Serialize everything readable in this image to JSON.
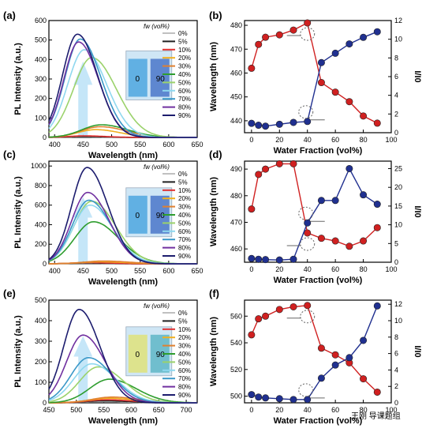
{
  "panels": {
    "a": {
      "label": "(a)"
    },
    "b": {
      "label": "(b)"
    },
    "c": {
      "label": "(c)"
    },
    "d": {
      "label": "(d)"
    },
    "e": {
      "label": "(e)"
    },
    "f": {
      "label": "(f)"
    }
  },
  "legend": {
    "title": "fw (vol%)",
    "entries": [
      "0%",
      "5%",
      "10%",
      "20%",
      "30%",
      "40%",
      "50%",
      "60%",
      "70%",
      "80%",
      "90%"
    ],
    "colors": [
      "#c0c0c0",
      "#202020",
      "#e03030",
      "#f0b020",
      "#e08030",
      "#2e9d2e",
      "#9bd26b",
      "#8fd8ef",
      "#3a98c8",
      "#7030a0",
      "#1c1c6e"
    ]
  },
  "cuvette": {
    "left": "0",
    "right": "90"
  },
  "watermark": "王刚 导课题组",
  "chart_data": [
    {
      "id": "a",
      "type": "line",
      "xlabel": "Wavelength (nm)",
      "ylabel": "PL Intensity (a.u.)",
      "xlim": [
        390,
        650
      ],
      "ylim": [
        0,
        600
      ],
      "xticks": [
        400,
        450,
        500,
        550,
        600,
        650
      ],
      "yticks": [
        0,
        100,
        200,
        300,
        400,
        500,
        600
      ],
      "series": [
        {
          "name": "0%",
          "peak": 445,
          "height": 3,
          "width": 28
        },
        {
          "name": "5%",
          "peak": 448,
          "height": 5,
          "width": 28
        },
        {
          "name": "10%",
          "peak": 452,
          "height": 8,
          "width": 28
        },
        {
          "name": "20%",
          "peak": 472,
          "height": 40,
          "width": 32
        },
        {
          "name": "30%",
          "peak": 480,
          "height": 55,
          "width": 34
        },
        {
          "name": "40%",
          "peak": 482,
          "height": 65,
          "width": 34
        },
        {
          "name": "50%",
          "peak": 465,
          "height": 410,
          "width": 32
        },
        {
          "name": "60%",
          "peak": 452,
          "height": 450,
          "width": 29
        },
        {
          "name": "70%",
          "peak": 445,
          "height": 505,
          "width": 27
        },
        {
          "name": "80%",
          "peak": 442,
          "height": 490,
          "width": 26
        },
        {
          "name": "90%",
          "peak": 440,
          "height": 530,
          "width": 26
        }
      ]
    },
    {
      "id": "b",
      "type": "scatter",
      "xlabel": "Water Fraction (vol%)",
      "ylabel": "Wavelength (nm)",
      "y2label": "I/I0",
      "xlim": [
        -5,
        100
      ],
      "ylim": [
        435,
        482
      ],
      "y2lim": [
        0,
        12
      ],
      "xticks": [
        0,
        20,
        40,
        60,
        80,
        100
      ],
      "yticks": [
        440,
        450,
        460,
        470,
        480
      ],
      "y2ticks": [
        0,
        2,
        4,
        6,
        8,
        10,
        12
      ],
      "series": [
        {
          "name": "Wavelength",
          "color": "#d02020",
          "axis": "left",
          "x": [
            0,
            5,
            10,
            20,
            30,
            40,
            50,
            60,
            70,
            80,
            90
          ],
          "y": [
            462,
            472,
            475,
            476,
            478,
            481,
            456,
            452,
            448,
            442,
            439
          ]
        },
        {
          "name": "I/I0",
          "color": "#203090",
          "axis": "right",
          "x": [
            0,
            5,
            10,
            20,
            30,
            40,
            50,
            60,
            70,
            80,
            90
          ],
          "y": [
            1.0,
            0.8,
            0.7,
            0.9,
            1.1,
            1.2,
            7.5,
            8.5,
            9.5,
            10.2,
            10.8
          ]
        }
      ]
    },
    {
      "id": "c",
      "type": "line",
      "xlabel": "Wavelength (nm)",
      "ylabel": "PL Intensity (a.u.)",
      "xlim": [
        390,
        650
      ],
      "ylim": [
        0,
        1050
      ],
      "xticks": [
        400,
        450,
        500,
        550,
        600,
        650
      ],
      "yticks": [
        0,
        200,
        400,
        600,
        800,
        1000
      ],
      "series": [
        {
          "name": "0%",
          "peak": 450,
          "height": 5,
          "width": 30
        },
        {
          "name": "5%",
          "peak": 455,
          "height": 8,
          "width": 30
        },
        {
          "name": "10%",
          "peak": 460,
          "height": 12,
          "width": 30
        },
        {
          "name": "20%",
          "peak": 480,
          "height": 20,
          "width": 34
        },
        {
          "name": "30%",
          "peak": 485,
          "height": 28,
          "width": 34
        },
        {
          "name": "40%",
          "peak": 468,
          "height": 430,
          "width": 33
        },
        {
          "name": "50%",
          "peak": 465,
          "height": 640,
          "width": 31
        },
        {
          "name": "60%",
          "peak": 462,
          "height": 600,
          "width": 30
        },
        {
          "name": "70%",
          "peak": 460,
          "height": 650,
          "width": 29
        },
        {
          "name": "80%",
          "peak": 458,
          "height": 730,
          "width": 28
        },
        {
          "name": "90%",
          "peak": 457,
          "height": 985,
          "width": 27
        }
      ]
    },
    {
      "id": "d",
      "type": "scatter",
      "xlabel": "Water Fraction (vol%)",
      "ylabel": "Wavelength (nm)",
      "y2label": "I/I0",
      "xlim": [
        -5,
        100
      ],
      "ylim": [
        455,
        493
      ],
      "y2lim": [
        0,
        27
      ],
      "xticks": [
        0,
        20,
        40,
        60,
        80,
        100
      ],
      "yticks": [
        460,
        470,
        480,
        490
      ],
      "y2ticks": [
        0,
        5,
        10,
        15,
        20,
        25
      ],
      "series": [
        {
          "name": "Wavelength",
          "color": "#d02020",
          "axis": "left",
          "x": [
            0,
            5,
            10,
            20,
            30,
            40,
            50,
            60,
            70,
            80,
            90
          ],
          "y": [
            475,
            488,
            490,
            492,
            492,
            466,
            464,
            463,
            461,
            463,
            468
          ]
        },
        {
          "name": "I/I0",
          "color": "#203090",
          "axis": "right",
          "x": [
            0,
            5,
            10,
            20,
            30,
            40,
            50,
            60,
            70,
            80,
            90
          ],
          "y": [
            1.0,
            0.8,
            0.7,
            0.6,
            0.8,
            10.5,
            16.5,
            16.5,
            25,
            18,
            15.5
          ]
        }
      ]
    },
    {
      "id": "e",
      "type": "line",
      "xlabel": "Wavelength (nm)",
      "ylabel": "PL Intensity (a.u.)",
      "xlim": [
        450,
        720
      ],
      "ylim": [
        0,
        500
      ],
      "xticks": [
        450,
        500,
        550,
        600,
        650,
        700
      ],
      "yticks": [
        0,
        100,
        200,
        300,
        400,
        500
      ],
      "series": [
        {
          "name": "0%",
          "peak": 545,
          "height": 6,
          "width": 32
        },
        {
          "name": "5%",
          "peak": 550,
          "height": 10,
          "width": 32
        },
        {
          "name": "10%",
          "peak": 555,
          "height": 15,
          "width": 34
        },
        {
          "name": "20%",
          "peak": 560,
          "height": 22,
          "width": 36
        },
        {
          "name": "30%",
          "peak": 565,
          "height": 28,
          "width": 36
        },
        {
          "name": "40%",
          "peak": 560,
          "height": 115,
          "width": 36
        },
        {
          "name": "50%",
          "peak": 540,
          "height": 175,
          "width": 34
        },
        {
          "name": "60%",
          "peak": 528,
          "height": 190,
          "width": 33
        },
        {
          "name": "70%",
          "peak": 522,
          "height": 220,
          "width": 32
        },
        {
          "name": "80%",
          "peak": 512,
          "height": 330,
          "width": 30
        },
        {
          "name": "90%",
          "peak": 505,
          "height": 455,
          "width": 28
        }
      ]
    },
    {
      "id": "f",
      "type": "scatter",
      "xlabel": "Water Fraction (vol%)",
      "ylabel": "Wavelength (nm)",
      "y2label": "I/I0",
      "xlim": [
        -5,
        100
      ],
      "ylim": [
        495,
        572
      ],
      "y2lim": [
        0,
        12.5
      ],
      "xticks": [
        0,
        20,
        40,
        60,
        80,
        100
      ],
      "yticks": [
        500,
        520,
        540,
        560
      ],
      "y2ticks": [
        0,
        2,
        4,
        6,
        8,
        10,
        12
      ],
      "series": [
        {
          "name": "Wavelength",
          "color": "#d02020",
          "axis": "left",
          "x": [
            0,
            5,
            10,
            20,
            30,
            40,
            50,
            60,
            70,
            80,
            90
          ],
          "y": [
            546,
            558,
            560,
            565,
            567,
            568,
            536,
            531,
            525,
            513,
            503
          ]
        },
        {
          "name": "I/I0",
          "color": "#203090",
          "axis": "right",
          "x": [
            0,
            5,
            10,
            20,
            30,
            40,
            50,
            60,
            70,
            80,
            90
          ],
          "y": [
            1.0,
            0.7,
            0.6,
            0.5,
            0.4,
            0.4,
            3.0,
            4.6,
            5.5,
            7.6,
            11.8
          ]
        }
      ]
    }
  ]
}
